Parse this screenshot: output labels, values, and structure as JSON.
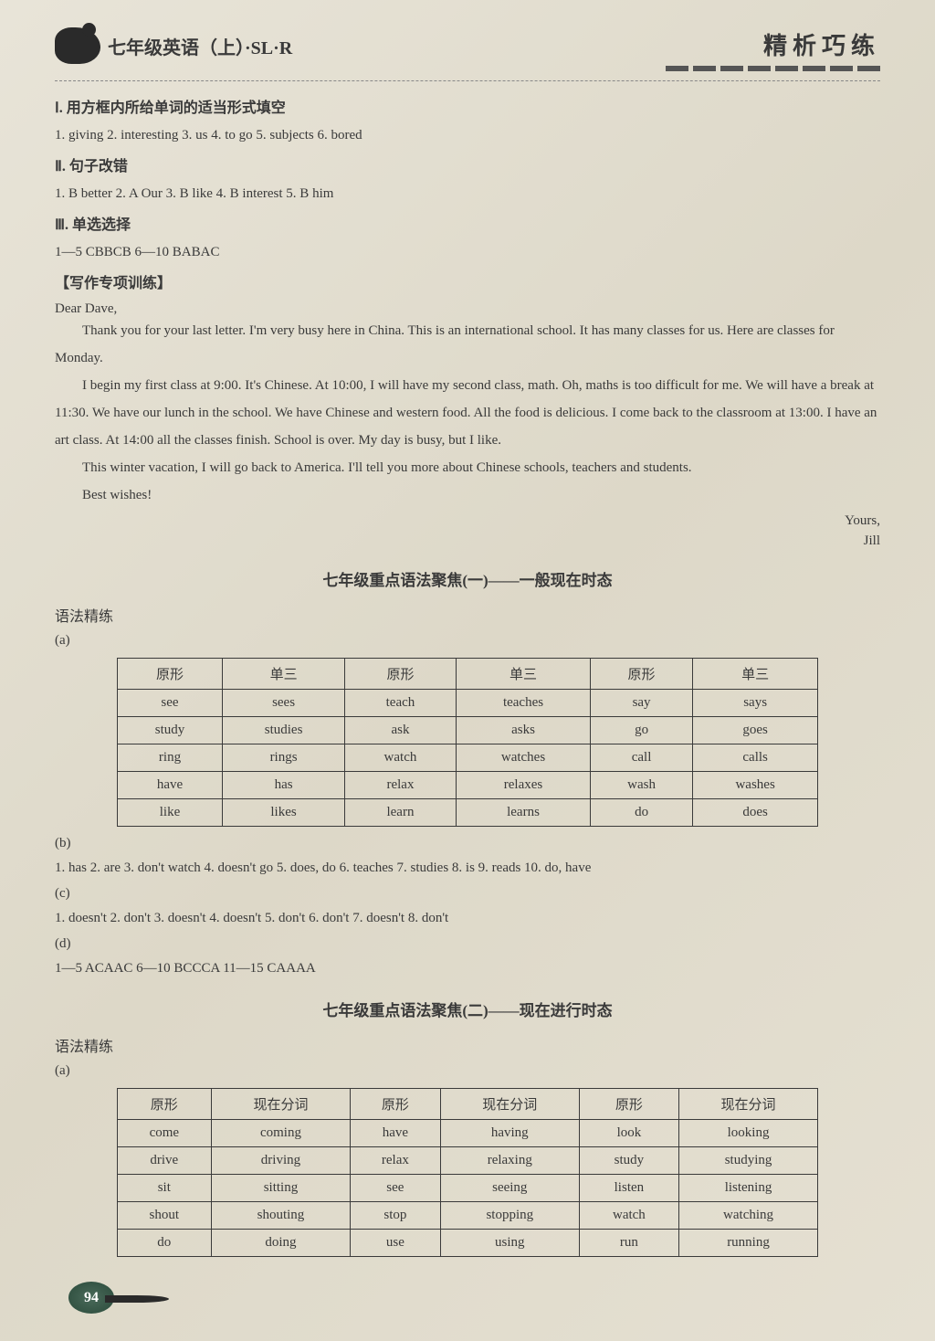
{
  "header": {
    "book_title": "七年级英语（上）·SL·R",
    "top_right_title": "精析巧练"
  },
  "sections": {
    "s1_title": "Ⅰ. 用方框内所给单词的适当形式填空",
    "s1_answers": "1. giving 2. interesting 3. us 4. to go 5. subjects 6. bored",
    "s2_title": "Ⅱ. 句子改错",
    "s2_answers": "1. B better 2. A Our 3. B like 4. B interest 5. B him",
    "s3_title": "Ⅲ. 单选选择",
    "s3_answers": "1—5 CBBCB 6—10 BABAC",
    "writing_title": "【写作专项训练】"
  },
  "letter": {
    "greeting": "Dear Dave,",
    "p1": "Thank you for your last letter. I'm very busy here in China. This is an international school. It has many classes for us. Here are classes for Monday.",
    "p2": "I begin my first class at 9:00. It's Chinese. At 10:00, I will have my second class, math. Oh, maths is too difficult for me. We will have a break at 11:30. We have our lunch in the school. We have Chinese and western food. All the food is delicious. I come back to the classroom at 13:00. I have an art class. At 14:00 all the classes finish. School is over. My day is busy, but I like.",
    "p3": "This winter vacation, I will go back to America. I'll tell you more about Chinese schools, teachers and students.",
    "p4": "Best wishes!",
    "closing1": "Yours,",
    "closing2": "Jill"
  },
  "grammar1": {
    "title": "七年级重点语法聚焦(一)——一般现在时态",
    "sub": "语法精练",
    "label_a": "(a)",
    "col1": "原形",
    "col2": "单三",
    "rows": [
      [
        "see",
        "sees",
        "teach",
        "teaches",
        "say",
        "says"
      ],
      [
        "study",
        "studies",
        "ask",
        "asks",
        "go",
        "goes"
      ],
      [
        "ring",
        "rings",
        "watch",
        "watches",
        "call",
        "calls"
      ],
      [
        "have",
        "has",
        "relax",
        "relaxes",
        "wash",
        "washes"
      ],
      [
        "like",
        "likes",
        "learn",
        "learns",
        "do",
        "does"
      ]
    ],
    "label_b": "(b)",
    "answers_b": "1. has 2. are 3. don't watch 4. doesn't go 5. does, do 6. teaches 7. studies 8. is 9. reads 10. do, have",
    "label_c": "(c)",
    "answers_c": "1. doesn't 2. don't 3. doesn't 4. doesn't 5. don't 6. don't 7. doesn't 8. don't",
    "label_d": "(d)",
    "answers_d": "1—5 ACAAC 6—10 BCCCA 11—15 CAAAA"
  },
  "grammar2": {
    "title": "七年级重点语法聚焦(二)——现在进行时态",
    "sub": "语法精练",
    "label_a": "(a)",
    "col1": "原形",
    "col2": "现在分词",
    "rows": [
      [
        "come",
        "coming",
        "have",
        "having",
        "look",
        "looking"
      ],
      [
        "drive",
        "driving",
        "relax",
        "relaxing",
        "study",
        "studying"
      ],
      [
        "sit",
        "sitting",
        "see",
        "seeing",
        "listen",
        "listening"
      ],
      [
        "shout",
        "shouting",
        "stop",
        "stopping",
        "watch",
        "watching"
      ],
      [
        "do",
        "doing",
        "use",
        "using",
        "run",
        "running"
      ]
    ]
  },
  "page_number": "94"
}
